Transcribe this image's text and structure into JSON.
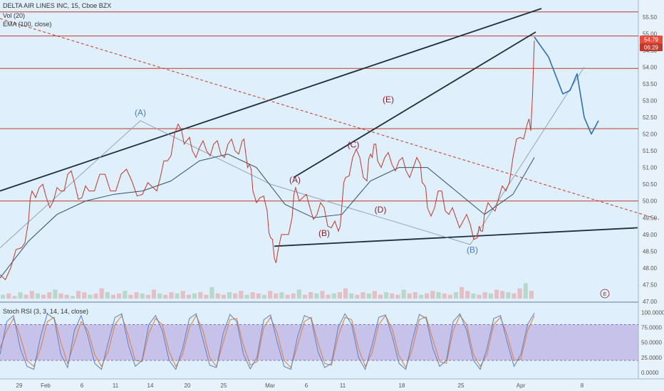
{
  "header": {
    "title": "DELTA AIR LINES INC, 15, Cboe BZX",
    "volume": "Vol (20)",
    "ema": "EMA (100, close)",
    "stoch": "Stoch RSI (3, 3, 14, 14, close)"
  },
  "colors": {
    "background": "#ddeefa",
    "price_line": "#c0392b",
    "trendline": "#1e2e3e",
    "wave_blue": "#4a80b8",
    "wave_red": "#8a1f2a",
    "stoch_band": "#b39ddb",
    "stoch_k": "#5b7fc7",
    "stoch_d": "#e07b39"
  },
  "chart_data": {
    "type": "line",
    "price_axis": {
      "ylim": [
        47.0,
        55.75
      ],
      "ticks": [
        "55.50",
        "55.00",
        "54.50",
        "54.00",
        "53.50",
        "53.00",
        "52.50",
        "52.00",
        "51.50",
        "51.00",
        "50.50",
        "50.00",
        "49.50",
        "49.00",
        "48.50",
        "48.00",
        "47.50",
        "47.00"
      ]
    },
    "last_price": "54.79",
    "countdown": "06:29",
    "x_labels": [
      "29",
      "Feb",
      "6",
      "11",
      "14",
      "20",
      "25",
      "Mar",
      "6",
      "11",
      "18",
      "25",
      "Apr",
      "8"
    ],
    "horizontal_levels": [
      55.65,
      54.93,
      53.96,
      52.16,
      50.0
    ],
    "price_path": {
      "x": [
        0,
        15,
        30,
        40,
        45,
        55,
        65,
        75,
        85,
        95,
        105,
        115,
        125,
        140,
        155,
        170,
        185,
        200,
        215,
        225,
        235,
        245,
        255,
        262,
        270,
        280,
        290,
        300,
        310,
        320,
        330,
        340,
        345,
        350,
        355,
        365,
        375,
        380,
        385,
        390,
        400,
        410,
        415,
        425,
        435,
        445,
        455,
        465,
        475,
        480,
        485,
        495,
        505,
        515,
        520,
        525,
        530,
        540,
        550,
        560,
        570,
        580,
        590,
        595,
        600,
        610,
        620,
        630,
        640,
        650,
        660,
        670,
        675,
        680,
        690,
        700,
        710,
        720,
        730,
        740,
        745,
        750
      ],
      "y": [
        47.8,
        48.0,
        48.6,
        49.4,
        50.3,
        50.4,
        50.1,
        50.0,
        50.3,
        50.8,
        50.5,
        50.1,
        50.3,
        50.8,
        50.3,
        50.8,
        50.6,
        50.2,
        50.4,
        50.7,
        51.2,
        52.0,
        52.1,
        51.8,
        51.5,
        51.6,
        51.5,
        51.7,
        51.4,
        51.7,
        51.5,
        51.8,
        51.4,
        51.1,
        50.3,
        50.1,
        49.7,
        48.9,
        48.3,
        48.5,
        49.0,
        49.5,
        50.4,
        50.1,
        49.8,
        49.6,
        49.8,
        49.2,
        49.1,
        49.9,
        50.7,
        51.3,
        51.3,
        50.6,
        51.4,
        51.7,
        51.2,
        51.3,
        51.1,
        51.2,
        50.9,
        51.0,
        51.1,
        50.5,
        49.8,
        49.8,
        50.3,
        49.6,
        49.5,
        49.4,
        49.3,
        48.9,
        49.1,
        49.6,
        49.8,
        50.1,
        50.3,
        51.3,
        51.9,
        52.3,
        52.1,
        54.79
      ]
    },
    "ema_path": {
      "x": [
        0,
        40,
        80,
        120,
        160,
        200,
        240,
        280,
        320,
        360,
        400,
        440,
        480,
        520,
        560,
        600,
        640,
        680,
        720,
        750
      ],
      "y": [
        47.7,
        48.8,
        49.6,
        50.0,
        50.2,
        50.3,
        50.6,
        51.2,
        51.4,
        51.0,
        49.9,
        49.5,
        49.6,
        50.6,
        51.0,
        51.0,
        50.3,
        49.6,
        50.2,
        51.3
      ]
    },
    "projection_path": {
      "x": [
        750,
        770,
        790,
        800,
        810,
        820,
        830,
        840
      ],
      "y": [
        54.9,
        54.3,
        53.2,
        53.3,
        53.8,
        52.5,
        52.0,
        52.4
      ]
    },
    "trendlines": [
      {
        "x1": 0,
        "y1": 50.3,
        "x2": 760,
        "y2": 55.75
      },
      {
        "x1": 412,
        "y1": 50.7,
        "x2": 752,
        "y2": 55.05
      },
      {
        "x1": 385,
        "y1": 48.65,
        "x2": 895,
        "y2": 49.2
      },
      {
        "x1": 0,
        "y1": 55.45,
        "x2": 925,
        "y2": 49.45,
        "dashed": true
      }
    ],
    "wave_path": {
      "x": [
        0,
        197,
        380,
        660,
        820
      ],
      "y": [
        48.6,
        52.4,
        50.5,
        48.7,
        54.0
      ]
    },
    "wave_labels": [
      {
        "text": "(A)",
        "x": 197,
        "y": 52.55,
        "color": "blue"
      },
      {
        "text": "(B)",
        "x": 663,
        "y": 48.45,
        "color": "blue"
      },
      {
        "text": "(A)",
        "x": 414,
        "y": 50.55,
        "color": "red"
      },
      {
        "text": "(B)",
        "x": 455,
        "y": 48.95,
        "color": "red"
      },
      {
        "text": "(C)",
        "x": 496,
        "y": 51.6,
        "color": "red"
      },
      {
        "text": "(D)",
        "x": 534,
        "y": 49.65,
        "color": "red"
      },
      {
        "text": "(E)",
        "x": 545,
        "y": 52.95,
        "color": "red"
      }
    ],
    "volume_bars": [
      3,
      4,
      2,
      5,
      3,
      6,
      4,
      3,
      5,
      7,
      4,
      3,
      2,
      6,
      5,
      3,
      4,
      8,
      5,
      3,
      4,
      6,
      3,
      5,
      4,
      3,
      7,
      4,
      3,
      5,
      4,
      6,
      3,
      4,
      5,
      3,
      9,
      4,
      3,
      5,
      4,
      6,
      3,
      5,
      4,
      3,
      6,
      4,
      5,
      3,
      4,
      7,
      3,
      5,
      4,
      6,
      3,
      4,
      5,
      8,
      4,
      3,
      5,
      4,
      6,
      3,
      5,
      4,
      3,
      7,
      4,
      5,
      3,
      4,
      6,
      5,
      4,
      3,
      5,
      9,
      6,
      4,
      3,
      5,
      4,
      7,
      6,
      5,
      4,
      8,
      12,
      6
    ],
    "stoch_rsi": {
      "ylim": [
        -5,
        102
      ],
      "ticks": [
        "100.0000",
        "75.0000",
        "50.0000",
        "25.0000",
        "0.0000"
      ],
      "upper": 80,
      "lower": 20,
      "k": [
        30,
        85,
        95,
        40,
        10,
        5,
        60,
        98,
        90,
        30,
        8,
        70,
        95,
        60,
        15,
        5,
        50,
        92,
        98,
        45,
        10,
        20,
        80,
        95,
        70,
        20,
        5,
        40,
        90,
        98,
        55,
        12,
        8,
        65,
        97,
        85,
        30,
        6,
        25,
        88,
        96,
        50,
        10,
        5,
        60,
        95,
        90,
        35,
        8,
        15,
        75,
        98,
        80,
        25,
        5,
        45,
        92,
        96,
        60,
        15,
        5,
        55,
        97,
        90,
        40,
        10,
        20,
        85,
        98,
        70,
        20,
        5,
        40,
        90,
        95,
        50,
        10,
        30,
        80,
        99
      ],
      "d": [
        40,
        70,
        90,
        60,
        20,
        10,
        40,
        85,
        92,
        50,
        15,
        50,
        85,
        70,
        30,
        10,
        35,
        80,
        95,
        60,
        20,
        18,
        65,
        90,
        80,
        35,
        10,
        30,
        75,
        95,
        70,
        25,
        10,
        50,
        88,
        90,
        45,
        12,
        18,
        75,
        92,
        65,
        20,
        8,
        45,
        85,
        92,
        50,
        15,
        12,
        60,
        92,
        88,
        40,
        10,
        32,
        80,
        95,
        72,
        28,
        8,
        40,
        88,
        93,
        55,
        18,
        15,
        70,
        95,
        80,
        30,
        10,
        30,
        80,
        92,
        62,
        20,
        22,
        70,
        95
      ]
    },
    "event_marker": "E"
  }
}
